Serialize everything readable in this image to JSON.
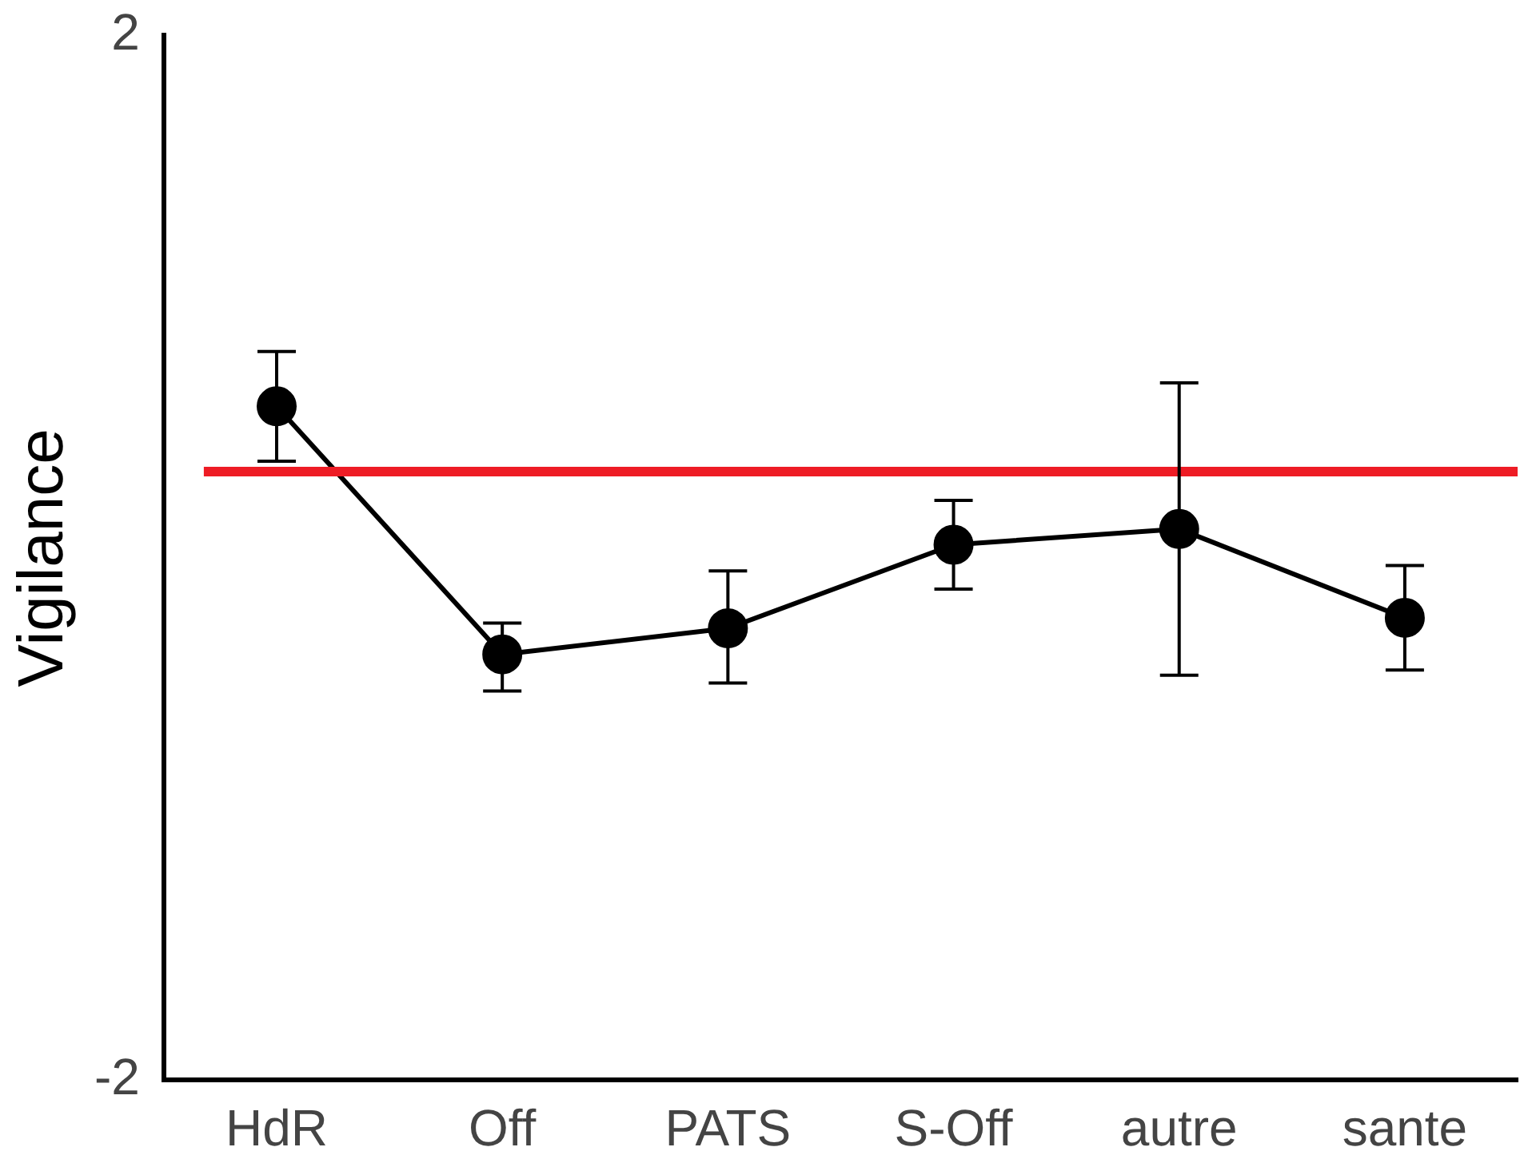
{
  "chart_data": {
    "type": "line",
    "ylabel": "Vigilance",
    "categories": [
      "HdR",
      "Off",
      "PATS",
      "S-Off",
      "autre",
      "sante"
    ],
    "series": [
      {
        "color": "#000000",
        "values": [
          0.58,
          -0.37,
          -0.27,
          0.05,
          0.11,
          -0.23
        ],
        "errors": [
          [
            0.37,
            0.79
          ],
          [
            -0.51,
            -0.25
          ],
          [
            -0.48,
            -0.05
          ],
          [
            -0.12,
            0.22
          ],
          [
            -0.45,
            0.67
          ],
          [
            -0.43,
            -0.03
          ]
        ]
      }
    ],
    "ylim": [
      -2,
      2
    ],
    "yticks": [
      -2,
      2
    ],
    "grid": false,
    "legend": false,
    "marker": "circle",
    "line_style": "solid",
    "ref_lines": [
      {
        "axis": "y",
        "value": 0.33,
        "color": "#ee1c25"
      }
    ]
  }
}
